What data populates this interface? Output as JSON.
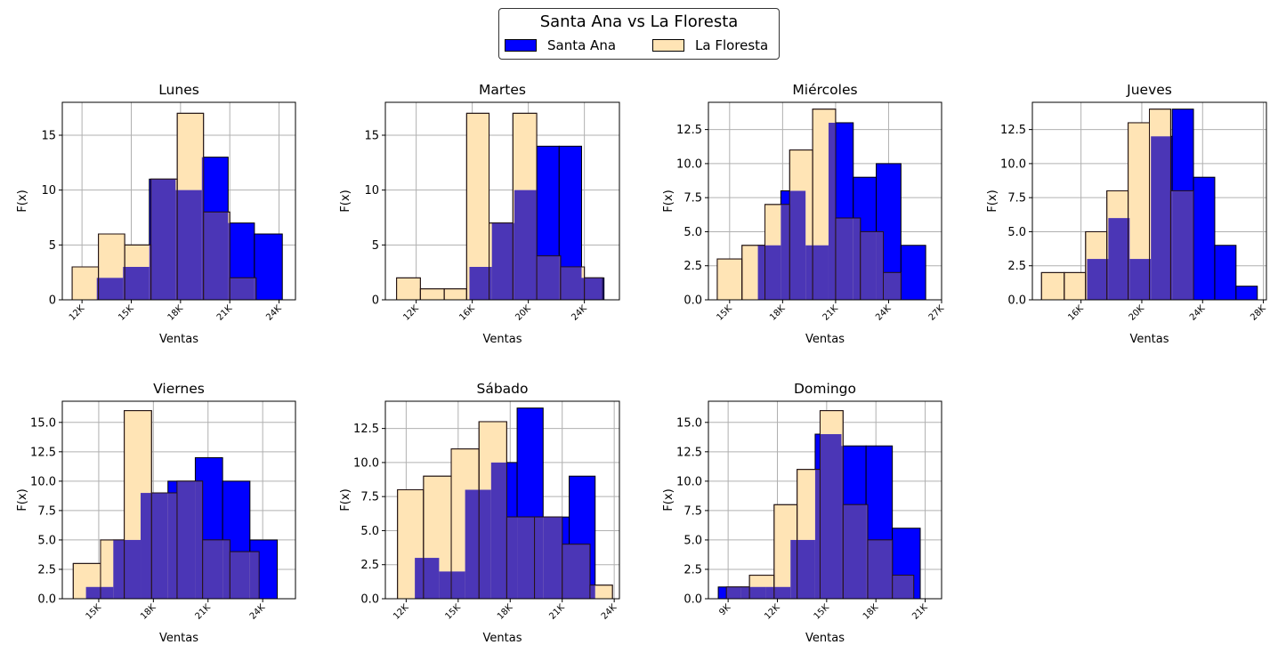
{
  "legend": {
    "title": "Santa Ana vs La Floresta",
    "items": [
      {
        "label": "Santa Ana",
        "color": "#0000ff"
      },
      {
        "label": "La Floresta",
        "color": "#ffe4b5"
      }
    ]
  },
  "overlap_color": "#4b36b6",
  "chart_data": [
    {
      "type": "bar",
      "title": "Lunes",
      "xlabel": "Ventas",
      "ylabel": "F(x)",
      "xlim": [
        10800,
        25000
      ],
      "ylim": [
        0,
        18
      ],
      "xticks": [
        12000,
        15000,
        18000,
        21000,
        24000
      ],
      "xtick_labels": [
        "12K",
        "15K",
        "18K",
        "21K",
        "24K"
      ],
      "yticks": [
        0,
        5,
        10,
        15
      ],
      "ytick_labels": [
        "0",
        "5",
        "10",
        "15"
      ],
      "series": [
        {
          "name": "Santa Ana",
          "bins": [
            [
              12900,
              14500,
              2
            ],
            [
              14500,
              16100,
              3
            ],
            [
              16100,
              17700,
              11
            ],
            [
              17700,
              19300,
              10
            ],
            [
              19300,
              20900,
              13
            ],
            [
              20900,
              22500,
              7
            ],
            [
              22500,
              24200,
              6
            ]
          ]
        },
        {
          "name": "La Floresta",
          "bins": [
            [
              11400,
              13000,
              3
            ],
            [
              13000,
              14600,
              6
            ],
            [
              14600,
              16200,
              5
            ],
            [
              16200,
              17800,
              11
            ],
            [
              17800,
              19400,
              17
            ],
            [
              19400,
              21000,
              8
            ],
            [
              21000,
              22600,
              2
            ]
          ]
        }
      ]
    },
    {
      "type": "bar",
      "title": "Martes",
      "xlabel": "Ventas",
      "ylabel": "F(x)",
      "xlim": [
        9800,
        26500
      ],
      "ylim": [
        0,
        18
      ],
      "xticks": [
        12000,
        16000,
        20000,
        24000
      ],
      "xtick_labels": [
        "12K",
        "16K",
        "20K",
        "24K"
      ],
      "yticks": [
        0,
        5,
        10,
        15
      ],
      "ytick_labels": [
        "0",
        "5",
        "10",
        "15"
      ],
      "series": [
        {
          "name": "Santa Ana",
          "bins": [
            [
              15800,
              17400,
              3
            ],
            [
              17400,
              19000,
              7
            ],
            [
              19000,
              20600,
              10
            ],
            [
              20600,
              22200,
              14
            ],
            [
              22200,
              23800,
              14
            ],
            [
              23800,
              25400,
              2
            ]
          ]
        },
        {
          "name": "La Floresta",
          "bins": [
            [
              10600,
              12300,
              2
            ],
            [
              12300,
              14000,
              1
            ],
            [
              14000,
              15600,
              1
            ],
            [
              15600,
              17200,
              17
            ],
            [
              17200,
              18900,
              7
            ],
            [
              18900,
              20600,
              17
            ],
            [
              20600,
              22300,
              4
            ],
            [
              22300,
              24000,
              3
            ],
            [
              24000,
              25300,
              2
            ]
          ]
        }
      ]
    },
    {
      "type": "bar",
      "title": "Miércoles",
      "xlabel": "Ventas",
      "ylabel": "F(x)",
      "xlim": [
        13800,
        27000
      ],
      "ylim": [
        0,
        14.5
      ],
      "xticks": [
        15000,
        18000,
        21000,
        24000,
        27000
      ],
      "xtick_labels": [
        "15K",
        "18K",
        "21K",
        "24K",
        "27K"
      ],
      "yticks": [
        0,
        2.5,
        5,
        7.5,
        10,
        12.5
      ],
      "ytick_labels": [
        "0.0",
        "2.5",
        "5.0",
        "7.5",
        "10.0",
        "12.5"
      ],
      "series": [
        {
          "name": "Santa Ana",
          "bins": [
            [
              16600,
              17900,
              4
            ],
            [
              17900,
              19300,
              8
            ],
            [
              19300,
              20600,
              4
            ],
            [
              20600,
              22000,
              13
            ],
            [
              22000,
              23300,
              9
            ],
            [
              23300,
              24700,
              10
            ],
            [
              24700,
              26100,
              4
            ]
          ]
        },
        {
          "name": "La Floresta",
          "bins": [
            [
              14300,
              15700,
              3
            ],
            [
              15700,
              17000,
              4
            ],
            [
              17000,
              18400,
              7
            ],
            [
              18400,
              19700,
              11
            ],
            [
              19700,
              21000,
              14
            ],
            [
              21000,
              22400,
              6
            ],
            [
              22400,
              23700,
              5
            ],
            [
              23700,
              24700,
              2
            ]
          ]
        }
      ]
    },
    {
      "type": "bar",
      "title": "Jueves",
      "xlabel": "Ventas",
      "ylabel": "F(x)",
      "xlim": [
        12800,
        28200
      ],
      "ylim": [
        0,
        14.5
      ],
      "xticks": [
        16000,
        20000,
        24000,
        28000
      ],
      "xtick_labels": [
        "16K",
        "20K",
        "24K",
        "28K"
      ],
      "yticks": [
        0,
        2.5,
        5,
        7.5,
        10,
        12.5
      ],
      "ytick_labels": [
        "0.0",
        "2.5",
        "5.0",
        "7.5",
        "10.0",
        "12.5"
      ],
      "series": [
        {
          "name": "Santa Ana",
          "bins": [
            [
              16400,
              17800,
              3
            ],
            [
              17800,
              19200,
              6
            ],
            [
              19200,
              20600,
              3
            ],
            [
              20600,
              22000,
              12
            ],
            [
              22000,
              23400,
              14
            ],
            [
              23400,
              24800,
              9
            ],
            [
              24800,
              26200,
              4
            ],
            [
              26200,
              27600,
              1
            ]
          ]
        },
        {
          "name": "La Floresta",
          "bins": [
            [
              13400,
              14900,
              2
            ],
            [
              14900,
              16300,
              2
            ],
            [
              16300,
              17700,
              5
            ],
            [
              17700,
              19100,
              8
            ],
            [
              19100,
              20500,
              13
            ],
            [
              20500,
              21900,
              14
            ],
            [
              21900,
              23400,
              8
            ]
          ]
        }
      ]
    },
    {
      "type": "bar",
      "title": "Viernes",
      "xlabel": "Ventas",
      "ylabel": "F(x)",
      "xlim": [
        13000,
        25800
      ],
      "ylim": [
        0,
        16.8
      ],
      "xticks": [
        15000,
        18000,
        21000,
        24000
      ],
      "xtick_labels": [
        "15K",
        "18K",
        "21K",
        "24K"
      ],
      "yticks": [
        0,
        2.5,
        5,
        7.5,
        10,
        12.5,
        15
      ],
      "ytick_labels": [
        "0.0",
        "2.5",
        "5.0",
        "7.5",
        "10.0",
        "12.5",
        "15.0"
      ],
      "series": [
        {
          "name": "Santa Ana",
          "bins": [
            [
              14300,
              15800,
              1
            ],
            [
              15800,
              17300,
              5
            ],
            [
              17300,
              18800,
              9
            ],
            [
              18800,
              20300,
              10
            ],
            [
              20300,
              21800,
              12
            ],
            [
              21800,
              23300,
              10
            ],
            [
              23300,
              24800,
              5
            ]
          ]
        },
        {
          "name": "La Floresta",
          "bins": [
            [
              13600,
              15100,
              3
            ],
            [
              15100,
              16400,
              5
            ],
            [
              16400,
              17900,
              16
            ],
            [
              17900,
              19300,
              9
            ],
            [
              19300,
              20700,
              10
            ],
            [
              20700,
              22200,
              5
            ],
            [
              22200,
              23800,
              4
            ]
          ]
        }
      ]
    },
    {
      "type": "bar",
      "title": "Sábado",
      "xlabel": "Ventas",
      "ylabel": "F(x)",
      "xlim": [
        10800,
        24300
      ],
      "ylim": [
        0,
        14.5
      ],
      "xticks": [
        12000,
        15000,
        18000,
        21000,
        24000
      ],
      "xtick_labels": [
        "12K",
        "15K",
        "18K",
        "21K",
        "24K"
      ],
      "yticks": [
        0,
        2.5,
        5,
        7.5,
        10,
        12.5
      ],
      "ytick_labels": [
        "0.0",
        "2.5",
        "5.0",
        "7.5",
        "10.0",
        "12.5"
      ],
      "series": [
        {
          "name": "Santa Ana",
          "bins": [
            [
              12500,
              13900,
              3
            ],
            [
              13900,
              15400,
              2
            ],
            [
              15400,
              16900,
              8
            ],
            [
              16900,
              18400,
              10
            ],
            [
              18400,
              19900,
              14
            ],
            [
              19900,
              21400,
              6
            ],
            [
              21400,
              22900,
              9
            ]
          ]
        },
        {
          "name": "La Floresta",
          "bins": [
            [
              11500,
              13000,
              8
            ],
            [
              13000,
              14600,
              9
            ],
            [
              14600,
              16200,
              11
            ],
            [
              16200,
              17800,
              13
            ],
            [
              17800,
              19400,
              6
            ],
            [
              19400,
              21000,
              6
            ],
            [
              21000,
              22600,
              4
            ],
            [
              22600,
              23900,
              1
            ]
          ]
        }
      ]
    },
    {
      "type": "bar",
      "title": "Domingo",
      "xlabel": "Ventas",
      "ylabel": "F(x)",
      "xlim": [
        7800,
        22000
      ],
      "ylim": [
        0,
        16.8
      ],
      "xticks": [
        9000,
        12000,
        15000,
        18000,
        21000
      ],
      "xtick_labels": [
        "9K",
        "12K",
        "15K",
        "18K",
        "21K"
      ],
      "yticks": [
        0,
        2.5,
        5,
        7.5,
        10,
        12.5,
        15
      ],
      "ytick_labels": [
        "0.0",
        "2.5",
        "5.0",
        "7.5",
        "10.0",
        "12.5",
        "15.0"
      ],
      "series": [
        {
          "name": "Santa Ana",
          "bins": [
            [
              8400,
              9800,
              1
            ],
            [
              9800,
              11300,
              1
            ],
            [
              11300,
              12800,
              1
            ],
            [
              12800,
              14300,
              5
            ],
            [
              14300,
              15900,
              14
            ],
            [
              15900,
              17400,
              13
            ],
            [
              17400,
              19000,
              13
            ],
            [
              19000,
              20700,
              6
            ]
          ]
        },
        {
          "name": "La Floresta",
          "bins": [
            [
              8900,
              10300,
              1
            ],
            [
              10300,
              11800,
              2
            ],
            [
              11800,
              13200,
              8
            ],
            [
              13200,
              14600,
              11
            ],
            [
              14600,
              16000,
              16
            ],
            [
              16000,
              17500,
              8
            ],
            [
              17500,
              19000,
              5
            ],
            [
              19000,
              20300,
              2
            ]
          ]
        }
      ]
    }
  ]
}
